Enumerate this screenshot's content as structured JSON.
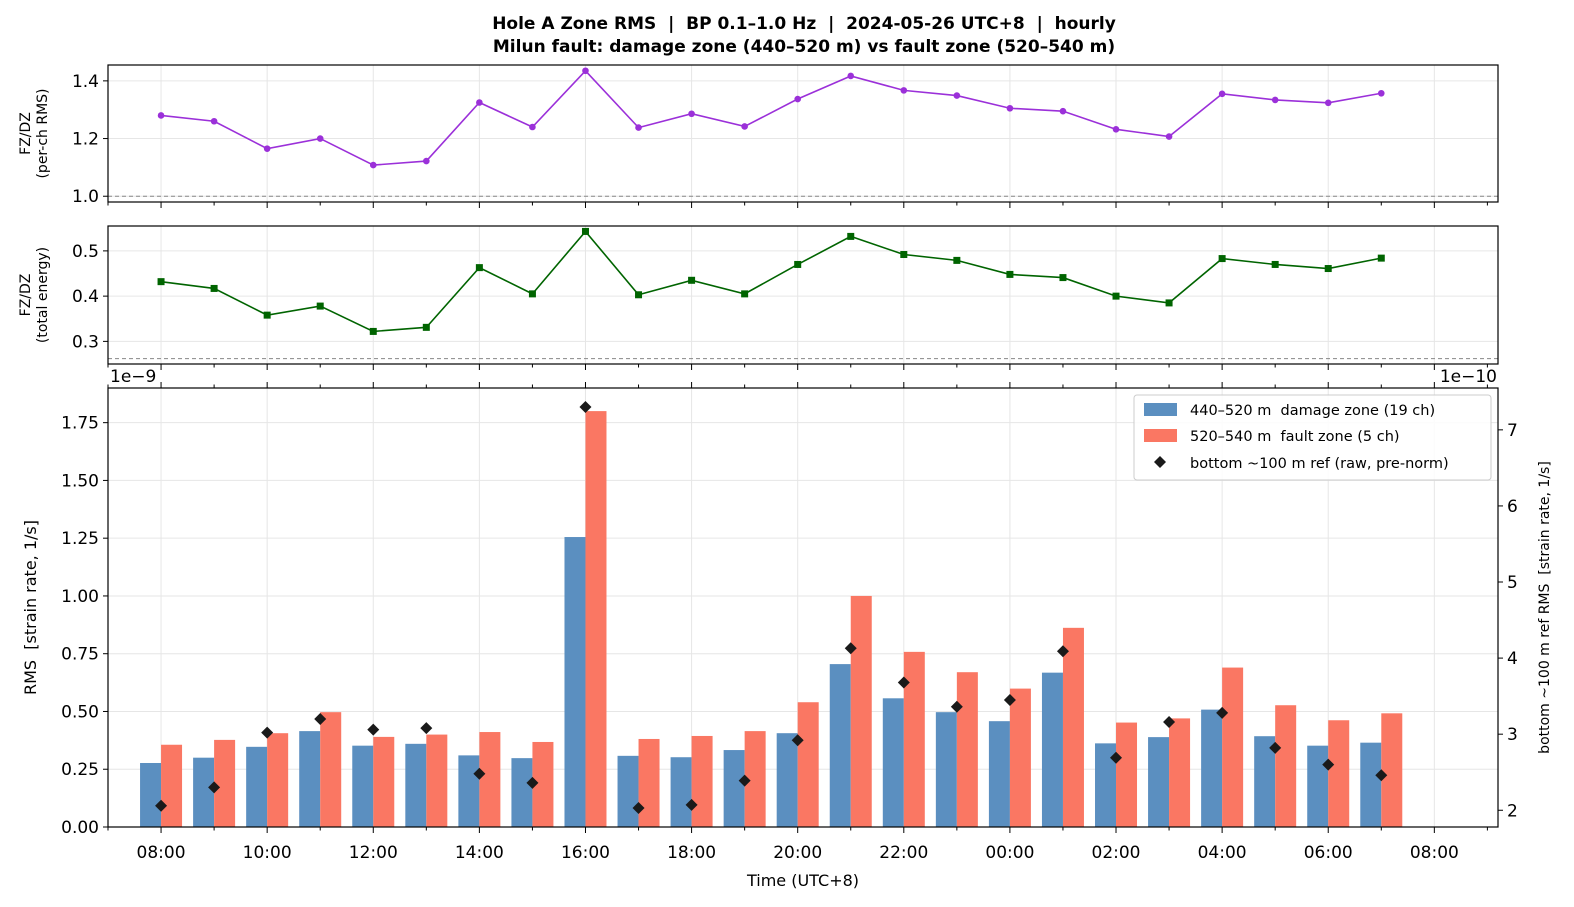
{
  "title_line1": "Hole A Zone RMS  |  BP 0.1–1.0 Hz  |  2024-05-26 UTC+8  |  hourly",
  "title_line2": "Milun fault: damage zone (440–520 m) vs fault zone (520–540 m)",
  "chart_data": [
    {
      "type": "line",
      "ylabel": "FZ/DZ",
      "ylabel_sub": "(per-ch RMS)",
      "ylim": [
        0.98,
        1.455
      ],
      "yticks": [
        "1.0",
        "1.2",
        "1.4"
      ],
      "reference_line": 1.0,
      "color": "#9b30d9",
      "marker": "circle",
      "grid": true,
      "x": [
        "08:00",
        "09:00",
        "10:00",
        "11:00",
        "12:00",
        "13:00",
        "14:00",
        "15:00",
        "16:00",
        "17:00",
        "18:00",
        "19:00",
        "20:00",
        "21:00",
        "22:00",
        "23:00",
        "00:00",
        "01:00",
        "02:00",
        "03:00",
        "04:00",
        "05:00",
        "06:00",
        "07:00"
      ],
      "values": [
        1.28,
        1.26,
        1.165,
        1.2,
        1.108,
        1.122,
        1.325,
        1.24,
        1.435,
        1.238,
        1.286,
        1.242,
        1.337,
        1.417,
        1.367,
        1.349,
        1.305,
        1.295,
        1.232,
        1.207,
        1.355,
        1.334,
        1.324,
        1.357
      ]
    },
    {
      "type": "line",
      "ylabel": "FZ/DZ",
      "ylabel_sub": "(total energy)",
      "ylim": [
        0.25,
        0.555
      ],
      "yticks": [
        "0.3",
        "0.4",
        "0.5"
      ],
      "reference_line": 0.262,
      "color": "#006400",
      "marker": "square",
      "grid": true,
      "x": [
        "08:00",
        "09:00",
        "10:00",
        "11:00",
        "12:00",
        "13:00",
        "14:00",
        "15:00",
        "16:00",
        "17:00",
        "18:00",
        "19:00",
        "20:00",
        "21:00",
        "22:00",
        "23:00",
        "00:00",
        "01:00",
        "02:00",
        "03:00",
        "04:00",
        "05:00",
        "06:00",
        "07:00"
      ],
      "values": [
        0.432,
        0.417,
        0.358,
        0.378,
        0.322,
        0.331,
        0.463,
        0.405,
        0.543,
        0.403,
        0.435,
        0.405,
        0.47,
        0.532,
        0.492,
        0.479,
        0.448,
        0.441,
        0.4,
        0.385,
        0.483,
        0.47,
        0.461,
        0.484
      ]
    },
    {
      "type": "bar",
      "xlabel": "Time (UTC+8)",
      "ylabel": "RMS  [strain rate, 1/s]",
      "ylabel_right": "bottom ~100 m ref RMS  [strain rate, 1/s]",
      "offset_left": "1e−9",
      "offset_right": "1e−10",
      "ylim": [
        0,
        1.9
      ],
      "ylim_right": [
        1.78,
        7.55
      ],
      "yticks": [
        "0.00",
        "0.25",
        "0.50",
        "0.75",
        "1.00",
        "1.25",
        "1.50",
        "1.75"
      ],
      "yticks_right": [
        "2",
        "3",
        "4",
        "5",
        "6",
        "7"
      ],
      "xticks": [
        "08:00",
        "10:00",
        "12:00",
        "14:00",
        "16:00",
        "18:00",
        "20:00",
        "22:00",
        "00:00",
        "02:00",
        "04:00",
        "06:00",
        "08:00"
      ],
      "grid": true,
      "legend_position": "top-right",
      "categories": [
        "08:00",
        "09:00",
        "10:00",
        "11:00",
        "12:00",
        "13:00",
        "14:00",
        "15:00",
        "16:00",
        "17:00",
        "18:00",
        "19:00",
        "20:00",
        "21:00",
        "22:00",
        "23:00",
        "00:00",
        "01:00",
        "02:00",
        "03:00",
        "04:00",
        "05:00",
        "06:00",
        "07:00"
      ],
      "series": [
        {
          "name": "440–520 m  damage zone (19 ch)",
          "color": "#5b8fc0",
          "axis": "left",
          "values": [
            0.277,
            0.3,
            0.347,
            0.415,
            0.352,
            0.36,
            0.31,
            0.298,
            1.255,
            0.308,
            0.302,
            0.333,
            0.406,
            0.705,
            0.557,
            0.497,
            0.458,
            0.668,
            0.362,
            0.389,
            0.508,
            0.393,
            0.352,
            0.365
          ]
        },
        {
          "name": "520–540 m  fault zone (5 ch)",
          "color": "#fa7763",
          "axis": "left",
          "values": [
            0.356,
            0.377,
            0.406,
            0.497,
            0.39,
            0.4,
            0.411,
            0.368,
            1.8,
            0.381,
            0.394,
            0.415,
            0.54,
            1.0,
            0.758,
            0.67,
            0.599,
            0.862,
            0.452,
            0.47,
            0.69,
            0.527,
            0.462,
            0.492
          ]
        },
        {
          "name": "bottom ~100 m ref (raw, pre-norm)",
          "color": "#1a1a1a",
          "axis": "right",
          "marker": "diamond",
          "values": [
            2.06,
            2.3,
            3.02,
            3.2,
            3.06,
            3.08,
            2.48,
            2.36,
            7.3,
            2.03,
            2.07,
            2.39,
            2.92,
            4.13,
            3.68,
            3.36,
            3.45,
            4.09,
            2.69,
            3.16,
            3.28,
            2.82,
            2.6,
            2.46
          ]
        }
      ]
    }
  ]
}
